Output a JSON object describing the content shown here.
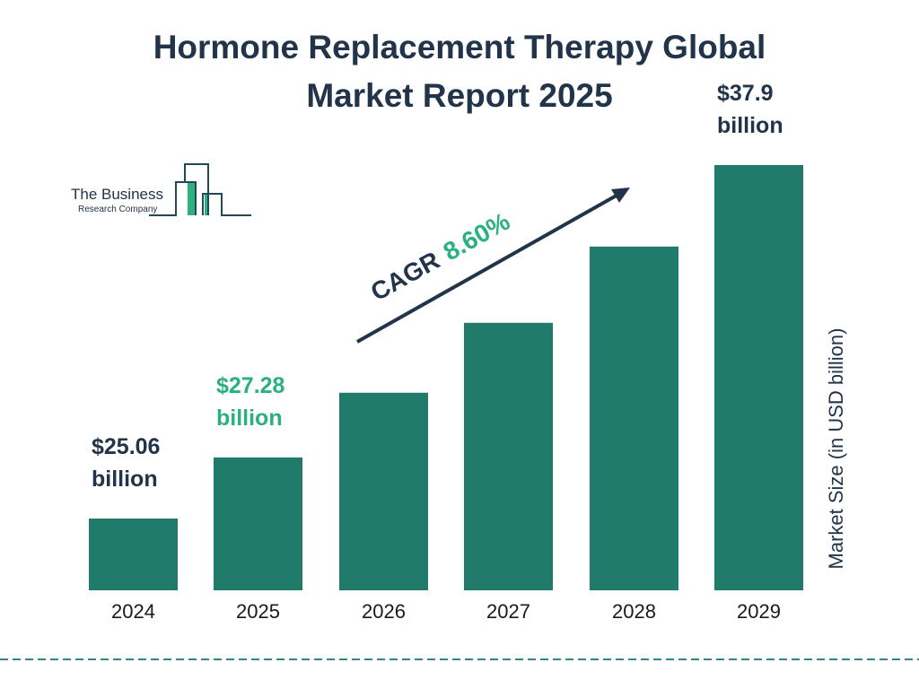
{
  "chart_data": {
    "type": "bar",
    "title": "Hormone Replacement Therapy Global Market Report 2025",
    "title_lines": [
      "Hormone Replacement Therapy Global",
      "Market Report 2025"
    ],
    "categories": [
      "2024",
      "2025",
      "2026",
      "2027",
      "2028",
      "2029"
    ],
    "values": [
      25.06,
      27.28,
      29.63,
      32.17,
      34.94,
      37.9
    ],
    "data_labels": [
      {
        "index": 0,
        "value": "$25.06",
        "unit": "billion",
        "color": "#22344a"
      },
      {
        "index": 1,
        "value": "$27.28",
        "unit": "billion",
        "color": "#2bb07f"
      },
      {
        "index": 5,
        "value": "$37.9",
        "unit": "billion",
        "color": "#22344a"
      }
    ],
    "ylabel": "Market Size (in USD billion)",
    "xlabel": "",
    "annotation": {
      "label": "CAGR",
      "value": "8.60%"
    },
    "grid": false,
    "bar_color": "#217b6b"
  },
  "logo": {
    "line1": "The Business",
    "line2": "Research Company"
  },
  "colors": {
    "text": "#22344a",
    "accent": "#2bb07f",
    "bar": "#217b6b",
    "divider": "#2a8a86"
  }
}
